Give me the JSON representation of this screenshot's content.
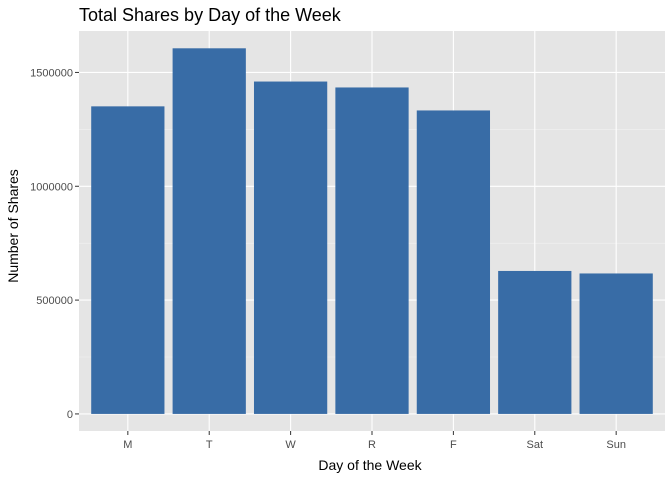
{
  "chart_data": {
    "type": "bar",
    "title": "Total Shares by Day of the Week",
    "xlabel": "Day of the Week",
    "ylabel": "Number of Shares",
    "categories": [
      "M",
      "T",
      "W",
      "R",
      "F",
      "Sat",
      "Sun"
    ],
    "values": [
      1351000,
      1606000,
      1460000,
      1434000,
      1333000,
      628000,
      617000
    ],
    "ylim": [
      -75000,
      1682000
    ],
    "yticks": [
      0,
      500000,
      1000000,
      1500000
    ],
    "ytick_labels": [
      "0",
      "500000",
      "1000000",
      "1500000"
    ],
    "grid": true,
    "colors": {
      "bar": "#386CA6",
      "panel": "#E5E5E5",
      "grid_major": "#FFFFFF",
      "grid_minor": "#F2F2F2",
      "tick": "#333333"
    }
  }
}
